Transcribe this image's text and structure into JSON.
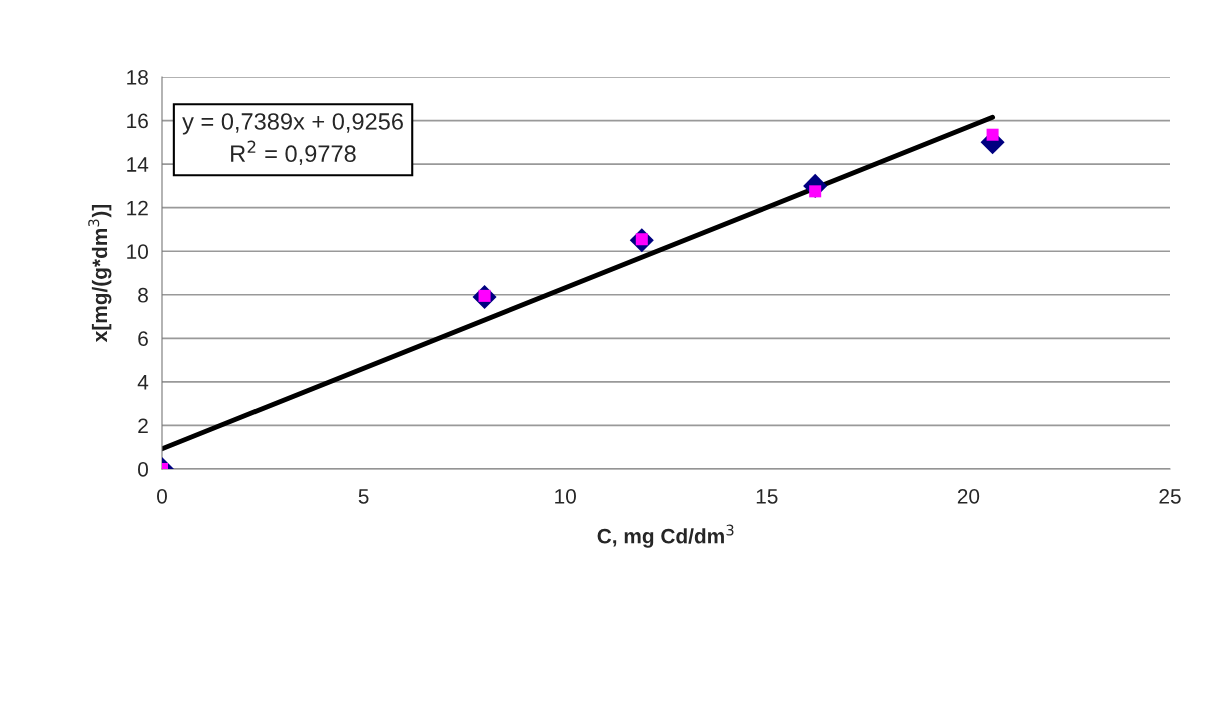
{
  "chart_data": {
    "type": "scatter",
    "xlabel": "C, mg Cd/dm$^{3}$",
    "ylabel": "x[mg/(g*dm$^{3}$)]",
    "x": [
      0,
      8.0,
      11.9,
      16.2,
      20.6
    ],
    "series": [
      {
        "color": "#000080",
        "marker": "diamond",
        "values": [
          0,
          7.9,
          10.5,
          13.0,
          15.0
        ]
      },
      {
        "color": "#ff00ff",
        "marker": "square",
        "values": [
          0,
          7.95,
          10.55,
          12.75,
          15.35
        ]
      },
      {
        "type": "line",
        "color": "#000000",
        "marker": "none",
        "x": [
          0,
          20.6
        ],
        "values": [
          0.93,
          16.15
        ]
      }
    ],
    "annotations": [
      "y = 0,7389x + 0,9256",
      "R$^{2}$ = 0,9778"
    ],
    "xlim": [
      0,
      25
    ],
    "xticks": [
      0,
      5,
      10,
      15,
      20,
      25
    ],
    "ylim": [
      0,
      18
    ],
    "yticks": [
      0,
      2,
      4,
      6,
      8,
      10,
      12,
      14,
      16,
      18
    ],
    "grid": "y",
    "legend": false
  }
}
